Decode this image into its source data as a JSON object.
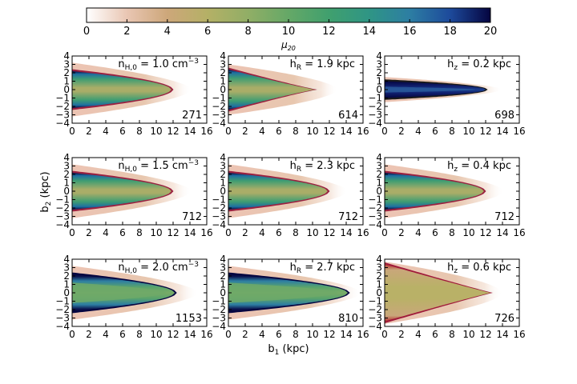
{
  "figure": {
    "colorbar": {
      "ticks": [
        "0",
        "2",
        "4",
        "6",
        "8",
        "10",
        "12",
        "14",
        "16",
        "18",
        "20"
      ],
      "label": "μ",
      "label_sub": "20",
      "range": [
        0,
        20
      ]
    },
    "x_label": {
      "main": "b",
      "sub": "1",
      "unit": " (kpc)"
    },
    "y_label": {
      "main": "b",
      "sub": "2",
      "unit": " (kpc)"
    }
  },
  "chart_data": {
    "type": "heatmap",
    "colorbar_stops": [
      {
        "v": 0,
        "c": "#ffffff"
      },
      {
        "v": 2,
        "c": "#e9c6b3"
      },
      {
        "v": 4,
        "c": "#cda77a"
      },
      {
        "v": 6,
        "c": "#b4b066"
      },
      {
        "v": 8,
        "c": "#91ae66"
      },
      {
        "v": 10,
        "c": "#65a867"
      },
      {
        "v": 12,
        "c": "#40a06e"
      },
      {
        "v": 14,
        "c": "#2f9585"
      },
      {
        "v": 16,
        "c": "#2d7ea3"
      },
      {
        "v": 18,
        "c": "#1d4a9b"
      },
      {
        "v": 20,
        "c": "#050540"
      }
    ],
    "xlim": [
      0,
      16
    ],
    "ylim": [
      -4,
      4
    ],
    "x_ticks": [
      "0",
      "2",
      "4",
      "6",
      "8",
      "10",
      "12",
      "14",
      "16"
    ],
    "y_ticks": [
      "4",
      "3",
      "2",
      "1",
      "0",
      "−1",
      "−2",
      "−3",
      "−4"
    ],
    "panels": [
      {
        "label_main": "n",
        "label_sub": "H,0",
        "label_value": " = 1.0 cm",
        "label_sup": "−3",
        "count": "271",
        "variant": "normal"
      },
      {
        "label_main": "h",
        "label_sub": "R",
        "label_value": " = 1.9 kpc",
        "label_sup": "",
        "count": "614",
        "variant": "short"
      },
      {
        "label_main": "h",
        "label_sub": "z",
        "label_value": " = 0.2 kpc",
        "label_sup": "",
        "count": "698",
        "variant": "thin"
      },
      {
        "label_main": "n",
        "label_sub": "H,0",
        "label_value": " = 1.5 cm",
        "label_sup": "−3",
        "count": "712",
        "variant": "normal"
      },
      {
        "label_main": "h",
        "label_sub": "R",
        "label_value": " = 2.3 kpc",
        "label_sup": "",
        "count": "712",
        "variant": "normal"
      },
      {
        "label_main": "h",
        "label_sub": "z",
        "label_value": " = 0.4 kpc",
        "label_sup": "",
        "count": "712",
        "variant": "normal"
      },
      {
        "label_main": "n",
        "label_sub": "H,0",
        "label_value": " = 2.0 cm",
        "label_sup": "−3",
        "count": "1153",
        "variant": "dense"
      },
      {
        "label_main": "h",
        "label_sub": "R",
        "label_value": " = 2.7 kpc",
        "label_sup": "",
        "count": "810",
        "variant": "long"
      },
      {
        "label_main": "h",
        "label_sub": "z",
        "label_value": " = 0.6 kpc",
        "label_sup": "",
        "count": "726",
        "variant": "thick"
      }
    ]
  }
}
